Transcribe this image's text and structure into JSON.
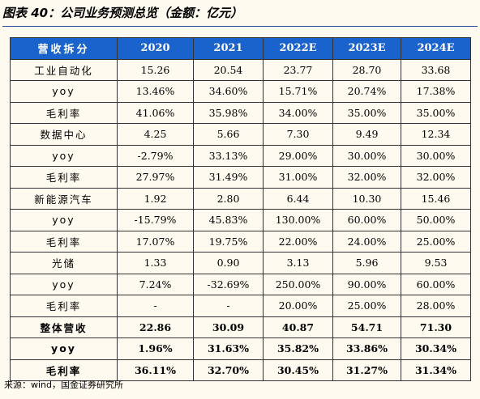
{
  "title": "图表 40：公司业务预测总览（金额：亿元）",
  "table": {
    "header": [
      "营收拆分",
      "2020",
      "2021",
      "2022E",
      "2023E",
      "2024E"
    ],
    "rows": [
      {
        "cells": [
          "工业自动化",
          "15.26",
          "20.54",
          "23.77",
          "28.70",
          "33.68"
        ],
        "bold": false
      },
      {
        "cells": [
          "yoy",
          "13.46%",
          "34.60%",
          "15.71%",
          "20.74%",
          "17.38%"
        ],
        "bold": false
      },
      {
        "cells": [
          "毛利率",
          "41.06%",
          "35.98%",
          "34.00%",
          "35.00%",
          "35.00%"
        ],
        "bold": false
      },
      {
        "cells": [
          "数据中心",
          "4.25",
          "5.66",
          "7.30",
          "9.49",
          "12.34"
        ],
        "bold": false
      },
      {
        "cells": [
          "yoy",
          "-2.79%",
          "33.13%",
          "29.00%",
          "30.00%",
          "30.00%"
        ],
        "bold": false
      },
      {
        "cells": [
          "毛利率",
          "27.97%",
          "31.49%",
          "31.00%",
          "32.00%",
          "32.00%"
        ],
        "bold": false
      },
      {
        "cells": [
          "新能源汽车",
          "1.92",
          "2.80",
          "6.44",
          "10.30",
          "15.46"
        ],
        "bold": false
      },
      {
        "cells": [
          "yoy",
          "-15.79%",
          "45.83%",
          "130.00%",
          "60.00%",
          "50.00%"
        ],
        "bold": false
      },
      {
        "cells": [
          "毛利率",
          "17.07%",
          "19.75%",
          "22.00%",
          "24.00%",
          "25.00%"
        ],
        "bold": false
      },
      {
        "cells": [
          "光储",
          "1.33",
          "0.90",
          "3.13",
          "5.96",
          "9.53"
        ],
        "bold": false
      },
      {
        "cells": [
          "yoy",
          "7.24%",
          "-32.69%",
          "250.00%",
          "90.00%",
          "60.00%"
        ],
        "bold": false
      },
      {
        "cells": [
          "毛利率",
          "-",
          "-",
          "20.00%",
          "25.00%",
          "28.00%"
        ],
        "bold": false
      },
      {
        "cells": [
          "整体营收",
          "22.86",
          "30.09",
          "40.87",
          "54.71",
          "71.30"
        ],
        "bold": true
      },
      {
        "cells": [
          "yoy",
          "1.96%",
          "31.63%",
          "35.82%",
          "33.86%",
          "30.34%"
        ],
        "bold": true
      },
      {
        "cells": [
          "毛利率",
          "36.11%",
          "32.70%",
          "30.45%",
          "31.27%",
          "31.34%"
        ],
        "bold": true
      }
    ]
  },
  "source": "来源：wind，国金证券研究所"
}
